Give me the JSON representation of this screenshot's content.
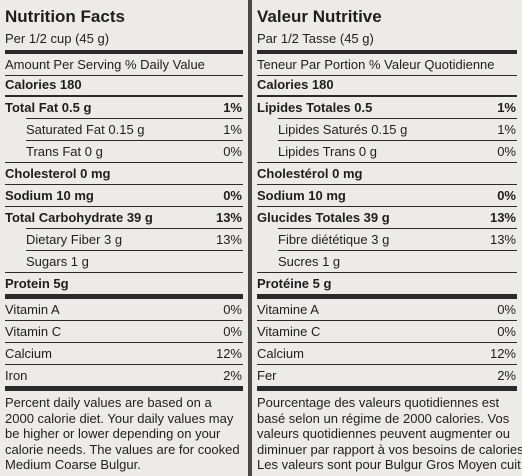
{
  "panels": [
    {
      "title": "Nutrition Facts",
      "serving": "Per 1/2 cup (45 g)",
      "header": "Amount Per Serving % Daily Value",
      "calories": "Calories 180",
      "rows": [
        {
          "label": "Total Fat 0.5 g",
          "value": "1%"
        },
        {
          "label": "Saturated Fat 0.15 g",
          "value": "1%"
        },
        {
          "label": "Trans Fat 0 g",
          "value": "0%"
        },
        {
          "label": "Cholesterol 0 mg"
        },
        {
          "label": "Sodium 10 mg",
          "value": "0%"
        },
        {
          "label": "Total Carbohydrate 39 g",
          "value": "13%"
        },
        {
          "label": "Dietary Fiber 3 g",
          "value": "13%"
        },
        {
          "label": "Sugars 1 g"
        },
        {
          "label": "Protein 5g"
        },
        {
          "label": "Vitamin A",
          "value": "0%"
        },
        {
          "label": "Vitamin C",
          "value": "0%"
        },
        {
          "label": "Calcium",
          "value": "12%"
        },
        {
          "label": "Iron",
          "value": "2%"
        }
      ],
      "footnote": [
        "Percent daily values are based on a",
        "2000 calorie diet. Your daily values may",
        "be higher or lower depending on your",
        "calorie needs. The values are for cooked",
        "Medium Coarse Bulgur."
      ]
    },
    {
      "title": "Valeur Nutritive",
      "serving": "Par 1/2 Tasse (45 g)",
      "header": "Teneur Par Portion % Valeur Quotidienne",
      "calories": "Calories 180",
      "rows": [
        {
          "label": "Lipides Totales 0.5",
          "value": "1%"
        },
        {
          "label": "Lipides Saturés 0.15 g",
          "value": "1%"
        },
        {
          "label": "Lipides Trans 0 g",
          "value": "0%"
        },
        {
          "label": "Cholestérol 0 mg"
        },
        {
          "label": "Sodium 10 mg",
          "value": "0%"
        },
        {
          "label": "Glucides Totales 39 g",
          "value": "13%"
        },
        {
          "label": "Fibre diététique 3 g",
          "value": "13%"
        },
        {
          "label": "Sucres 1 g"
        },
        {
          "label": "Protéine 5 g"
        },
        {
          "label": "Vitamine A",
          "value": "0%"
        },
        {
          "label": "Vitamine C",
          "value": "0%"
        },
        {
          "label": "Calcium",
          "value": "12%"
        },
        {
          "label": "Fer",
          "value": "2%"
        }
      ],
      "footnote": [
        "Pourcentage des valeurs quotidiennes est",
        "basé selon un régime de 2000 calories. Vos",
        "valeurs quotidiennes peuvent augmenter ou",
        "diminuer par rapport à vos besoins de calories.",
        "Les valeurs sont pour Bulgur Gros Moyen cuit."
      ]
    }
  ]
}
